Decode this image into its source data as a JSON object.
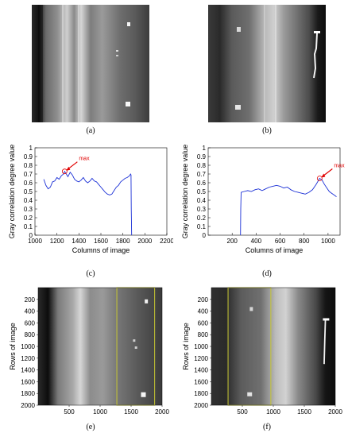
{
  "captions": {
    "a": "(a)",
    "b": "(b)",
    "c": "(c)",
    "d": "(d)",
    "e": "(e)",
    "f": "(f)"
  },
  "colors": {
    "curve": "#1a2fd6",
    "marker": "#e00000",
    "window": "#c8c832"
  },
  "chart_data": [
    {
      "type": "line",
      "panel": "c",
      "xlabel": "Columns of image",
      "ylabel": "Gray correlation degree value",
      "xlim": [
        1000,
        2200
      ],
      "ylim": [
        0,
        1
      ],
      "xticks": [
        "1000",
        "1200",
        "1400",
        "1600",
        "1800",
        "2000",
        "2200"
      ],
      "yticks": [
        "0",
        "0.1",
        "0.2",
        "0.3",
        "0.4",
        "0.5",
        "0.6",
        "0.7",
        "0.8",
        "0.9",
        "1"
      ],
      "annotation": "max",
      "max_point": [
        1270,
        0.73
      ],
      "series": [
        {
          "x": [
            1080,
            1100,
            1120,
            1140,
            1160,
            1180,
            1200,
            1220,
            1240,
            1260,
            1270,
            1280,
            1300,
            1320,
            1340,
            1360,
            1380,
            1400,
            1420,
            1440,
            1460,
            1480,
            1500,
            1520,
            1540,
            1560,
            1580,
            1600,
            1620,
            1640,
            1660,
            1680,
            1700,
            1720,
            1740,
            1760,
            1780,
            1800,
            1820,
            1840,
            1860,
            1870,
            1874,
            1876,
            1880
          ],
          "y": [
            0.64,
            0.57,
            0.53,
            0.55,
            0.61,
            0.62,
            0.66,
            0.64,
            0.68,
            0.7,
            0.73,
            0.71,
            0.67,
            0.72,
            0.69,
            0.64,
            0.62,
            0.61,
            0.63,
            0.66,
            0.62,
            0.6,
            0.62,
            0.65,
            0.62,
            0.61,
            0.58,
            0.55,
            0.52,
            0.49,
            0.47,
            0.46,
            0.47,
            0.51,
            0.55,
            0.57,
            0.61,
            0.63,
            0.65,
            0.66,
            0.68,
            0.7,
            0.69,
            0.3,
            0.0
          ]
        }
      ]
    },
    {
      "type": "line",
      "panel": "d",
      "xlabel": "Columns of image",
      "ylabel": "Gray correlation degree value",
      "xlim": [
        0,
        1100
      ],
      "ylim": [
        0,
        1
      ],
      "xticks": [
        "200",
        "400",
        "600",
        "800",
        "1000"
      ],
      "yticks": [
        "0",
        "0.1",
        "0.2",
        "0.3",
        "0.4",
        "0.5",
        "0.6",
        "0.7",
        "0.8",
        "0.9",
        "1"
      ],
      "annotation": "max",
      "max_point": [
        930,
        0.65
      ],
      "series": [
        {
          "x": [
            270,
            272,
            275,
            300,
            330,
            360,
            390,
            420,
            450,
            480,
            510,
            540,
            570,
            600,
            630,
            660,
            690,
            720,
            750,
            780,
            810,
            840,
            870,
            900,
            930,
            950,
            970,
            990,
            1010,
            1030,
            1050,
            1070
          ],
          "y": [
            0.0,
            0.3,
            0.49,
            0.5,
            0.51,
            0.5,
            0.52,
            0.53,
            0.51,
            0.53,
            0.55,
            0.56,
            0.57,
            0.56,
            0.54,
            0.55,
            0.52,
            0.5,
            0.49,
            0.48,
            0.47,
            0.49,
            0.52,
            0.58,
            0.65,
            0.63,
            0.58,
            0.54,
            0.5,
            0.48,
            0.46,
            0.44
          ]
        }
      ]
    },
    {
      "type": "other",
      "panel": "e",
      "ylabel": "Rows of image",
      "xticks": [
        "500",
        "1000",
        "1500",
        "2000"
      ],
      "yticks": [
        "200",
        "400",
        "600",
        "800",
        "1000",
        "1200",
        "1400",
        "1600",
        "1800",
        "2000"
      ],
      "window": [
        1270,
        1880
      ]
    },
    {
      "type": "other",
      "panel": "f",
      "ylabel": "Rows of image",
      "xticks": [
        "500",
        "1000",
        "1500",
        "2000"
      ],
      "yticks": [
        "200",
        "400",
        "600",
        "800",
        "1000",
        "1200",
        "1400",
        "1600",
        "1800",
        "2000"
      ],
      "window": [
        270,
        960
      ]
    }
  ]
}
